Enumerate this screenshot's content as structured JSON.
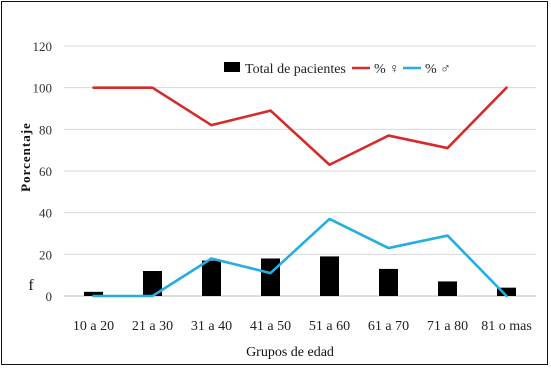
{
  "chart_data": {
    "type": "bar",
    "categories": [
      "10 a 20",
      "21 a 30",
      "31 a 40",
      "41 a 50",
      "51 a 60",
      "61 a 70",
      "71 a 80",
      "81 o mas"
    ],
    "series": [
      {
        "name": "Total de pacientes",
        "kind": "bar",
        "color": "#000000",
        "values": [
          2,
          12,
          17,
          18,
          19,
          13,
          7,
          4
        ]
      },
      {
        "name": "% ♀",
        "kind": "line",
        "color": "#d62b2b",
        "values": [
          100,
          100,
          82,
          89,
          63,
          77,
          71,
          100
        ]
      },
      {
        "name": "% ♂",
        "kind": "line",
        "color": "#25aee0",
        "values": [
          0,
          0,
          18,
          11,
          37,
          23,
          29,
          0
        ]
      }
    ],
    "yticks": [
      0,
      20,
      40,
      60,
      80,
      100,
      120
    ],
    "ylim": [
      0,
      120
    ],
    "xlabel": "Grupos de edad",
    "ylabel": "Porcentaje",
    "f_label": "f",
    "legend_position": "top-right",
    "grid": "horizontal"
  }
}
